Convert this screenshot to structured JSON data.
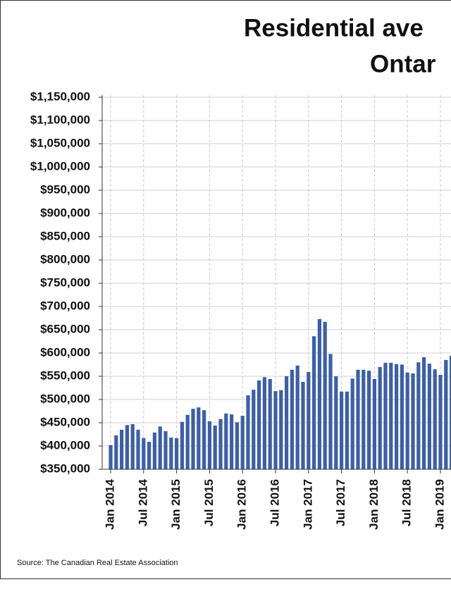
{
  "chart_data": {
    "type": "bar",
    "title": [
      "Residential ave",
      "Ontar"
    ],
    "source": "Source: The Canadian Real Estate Association",
    "categories": [
      "Jan 2014",
      null,
      null,
      null,
      null,
      null,
      "Jul 2014",
      null,
      null,
      null,
      null,
      null,
      "Jan 2015",
      null,
      null,
      null,
      null,
      null,
      "Jul 2015",
      null,
      null,
      null,
      null,
      null,
      "Jan 2016",
      null,
      null,
      null,
      null,
      null,
      "Jul 2016",
      null,
      null,
      null,
      null,
      null,
      "Jan 2017",
      null,
      null,
      null,
      null,
      null,
      "Jul 2017",
      null,
      null,
      null,
      null,
      null,
      "Jan 2018",
      null,
      null,
      null,
      null,
      null,
      "Jul 2018",
      null,
      null,
      null,
      null,
      null,
      "Jan 2019",
      null,
      null
    ],
    "values": [
      402000,
      423000,
      435000,
      445000,
      447000,
      435000,
      417000,
      409000,
      429000,
      442000,
      432000,
      418000,
      417000,
      452000,
      467000,
      480000,
      483000,
      477000,
      453000,
      444000,
      458000,
      470000,
      468000,
      451000,
      465000,
      509000,
      521000,
      541000,
      548000,
      544000,
      518000,
      520000,
      550000,
      564000,
      573000,
      538000,
      559000,
      636000,
      673000,
      667000,
      598000,
      550000,
      517000,
      517000,
      545000,
      564000,
      564000,
      562000,
      544000,
      570000,
      579000,
      579000,
      576000,
      575000,
      558000,
      556000,
      580000,
      591000,
      577000,
      565000,
      553000,
      585000,
      594000
    ],
    "color": "#3c5fa8",
    "ylim": [
      350000,
      1150000
    ],
    "yticks": [
      {
        "value": 350000,
        "label": "$350,000"
      },
      {
        "value": 400000,
        "label": "$400,000"
      },
      {
        "value": 450000,
        "label": "$450,000"
      },
      {
        "value": 500000,
        "label": "$500,000"
      },
      {
        "value": 550000,
        "label": "$550,000"
      },
      {
        "value": 600000,
        "label": "$600,000"
      },
      {
        "value": 650000,
        "label": "$650,000"
      },
      {
        "value": 700000,
        "label": "$700,000"
      },
      {
        "value": 750000,
        "label": "$750,000"
      },
      {
        "value": 800000,
        "label": "$800,000"
      },
      {
        "value": 850000,
        "label": "$850,000"
      },
      {
        "value": 900000,
        "label": "$900,000"
      },
      {
        "value": 950000,
        "label": "$950,000"
      },
      {
        "value": 1000000,
        "label": "$1,000,000"
      },
      {
        "value": 1050000,
        "label": "$1,050,000"
      },
      {
        "value": 1100000,
        "label": "$1,100,000"
      },
      {
        "value": 1150000,
        "label": "$1,150,000"
      }
    ],
    "grid": true
  }
}
